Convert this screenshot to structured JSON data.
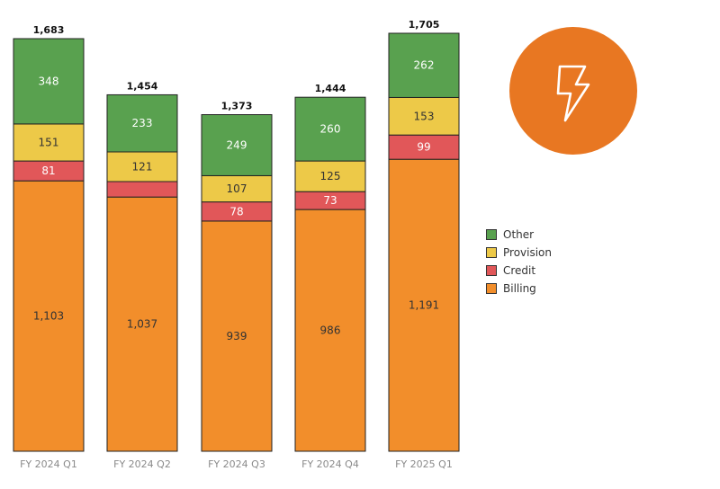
{
  "chart_data": {
    "type": "bar",
    "stacked": true,
    "categories": [
      "FY 2024 Q1",
      "FY 2024 Q2",
      "FY 2024 Q3",
      "FY 2024 Q4",
      "FY 2025 Q1"
    ],
    "totals": [
      "1,683",
      "1,454",
      "1,373",
      "1,444",
      "1,705"
    ],
    "series": [
      {
        "name": "Billing",
        "color": "#f28e2b",
        "values": [
          1103,
          1037,
          939,
          986,
          1191
        ],
        "labels": [
          "1,103",
          "1,037",
          "939",
          "986",
          "1,191"
        ],
        "label_color": "#333333"
      },
      {
        "name": "Credit",
        "color": "#e15759",
        "values": [
          81,
          63,
          78,
          73,
          99
        ],
        "labels": [
          "81",
          "",
          "78",
          "73",
          "99"
        ],
        "label_color": "#ffffff"
      },
      {
        "name": "Provision",
        "color": "#edc948",
        "values": [
          151,
          121,
          107,
          125,
          153
        ],
        "labels": [
          "151",
          "121",
          "107",
          "125",
          "153"
        ],
        "label_color": "#333333"
      },
      {
        "name": "Other",
        "color": "#59a14f",
        "values": [
          348,
          233,
          249,
          260,
          262
        ],
        "labels": [
          "348",
          "233",
          "249",
          "260",
          "262"
        ],
        "label_color": "#ffffff"
      }
    ],
    "legend_order": [
      "Other",
      "Provision",
      "Credit",
      "Billing"
    ],
    "ylim": [
      0,
      1705
    ],
    "grid": false,
    "legend_position": "right"
  },
  "badge": {
    "icon": "lightning-bolt-icon",
    "color": "#e87722"
  }
}
